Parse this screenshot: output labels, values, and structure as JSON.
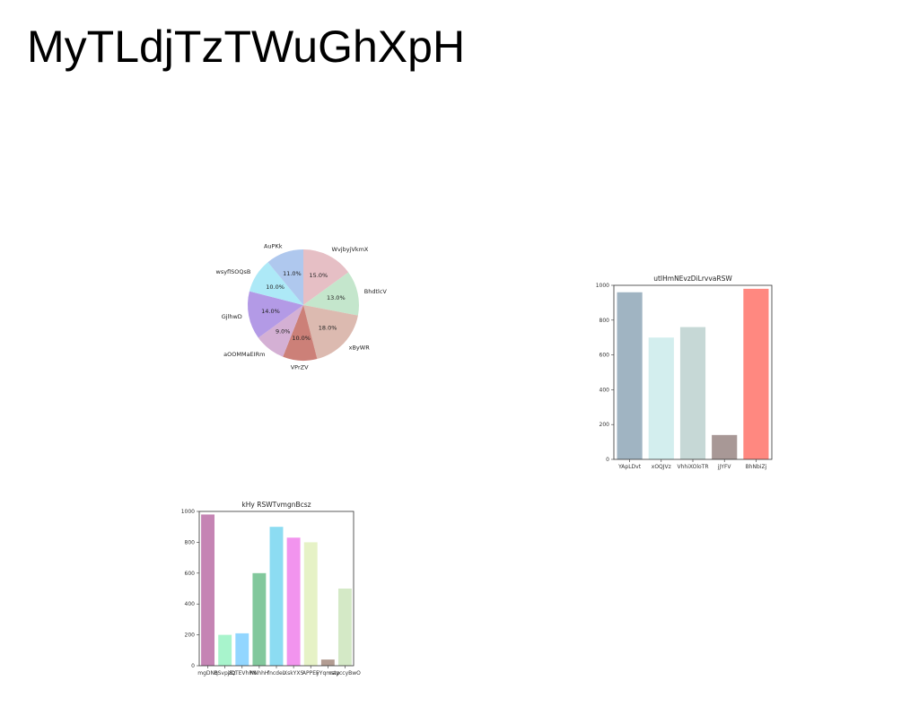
{
  "page": {
    "title": "MyTLdjTzTWuGhXpH"
  },
  "chart_data": [
    {
      "type": "pie",
      "title": "",
      "labels": [
        "WvjbyjVkmX",
        "BhdtlcV",
        "xByWR",
        "VPrZV",
        "aOOMMaEIRm",
        "GjlhwD",
        "wsyflSOQsB",
        "AuPKk"
      ],
      "values": [
        15.0,
        13.0,
        18.0,
        10.0,
        9.0,
        14.0,
        10.0,
        11.0
      ],
      "value_labels": [
        "15.0%",
        "13.0%",
        "18.0%",
        "10.0%",
        "9.0%",
        "14.0%",
        "10.0%",
        "11.0%"
      ],
      "colors": [
        "#e6bfc5",
        "#c4e6cc",
        "#dcbab0",
        "#cc8078",
        "#d4b0d4",
        "#b39ae6",
        "#ade9f7",
        "#afc8ee"
      ],
      "start_angle": "12 o'clock",
      "direction": "clockwise"
    },
    {
      "type": "bar",
      "title": "utIHmNEvzDiLrvvaRSW",
      "xlabel": "",
      "ylabel": "",
      "categories": [
        "YApLDvt",
        "xOQJVz",
        "VhhiXOloTR",
        "jJYFV",
        "BhNbiZj"
      ],
      "values": [
        960,
        700,
        760,
        140,
        980
      ],
      "colors": [
        "#a0b4c2",
        "#d3eeee",
        "#c6d8d6",
        "#a89896",
        "#ff8880"
      ],
      "ylim": [
        0,
        1000
      ],
      "yticks": [
        0,
        200,
        400,
        600,
        800,
        1000
      ],
      "ytick_labels": [
        "0",
        "200",
        "400",
        "600",
        "800",
        "1000"
      ],
      "grid": false
    },
    {
      "type": "bar",
      "title": "kHy RSWTvmgnBcsz",
      "xlabel": "",
      "ylabel": "",
      "categories": [
        "mgDNq",
        "BSvpjBz",
        "zQTEVhPN",
        "NNhhH",
        "fncdeL",
        "XskYXS",
        "APPEF",
        "yYqmstp",
        "nayccyBwO"
      ],
      "values": [
        980,
        200,
        210,
        600,
        900,
        830,
        800,
        40,
        500
      ],
      "colors": [
        "#c584b4",
        "#a8f4cc",
        "#92d6ff",
        "#82c89c",
        "#8cdcf2",
        "#f294ee",
        "#e6f2c6",
        "#b29c92",
        "#d4e9c6"
      ],
      "ylim": [
        0,
        1000
      ],
      "yticks": [
        0,
        200,
        400,
        600,
        800,
        1000
      ],
      "ytick_labels": [
        "0",
        "200",
        "400",
        "600",
        "800",
        "1000"
      ],
      "grid": false
    }
  ]
}
